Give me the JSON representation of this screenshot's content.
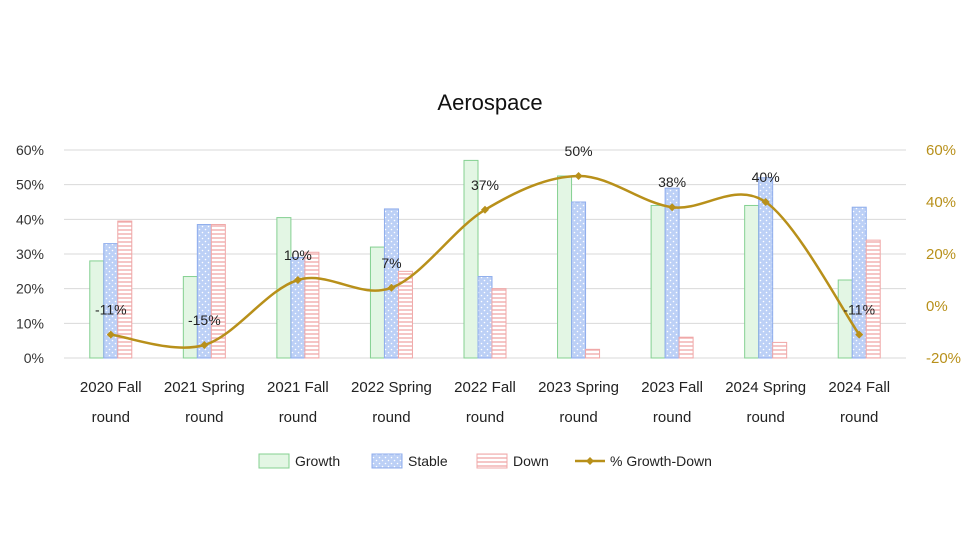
{
  "chart_data": {
    "type": "bar",
    "title": "Aerospace",
    "categories": [
      [
        "2020 Fall",
        "round"
      ],
      [
        "2021 Spring",
        "round"
      ],
      [
        "2021 Fall",
        "round"
      ],
      [
        "2022 Spring",
        "round"
      ],
      [
        "2022 Fall",
        "round"
      ],
      [
        "2023 Spring",
        "round"
      ],
      [
        "2023 Fall",
        "round"
      ],
      [
        "2024 Spring",
        "round"
      ],
      [
        "2024 Fall",
        "round"
      ]
    ],
    "series": [
      {
        "name": "Growth",
        "values": [
          28,
          23.5,
          40.5,
          32,
          57,
          52.5,
          44,
          44,
          22.5
        ]
      },
      {
        "name": "Stable",
        "values": [
          33,
          38.5,
          29,
          43,
          23.5,
          45,
          49,
          52,
          43.5
        ]
      },
      {
        "name": "Down",
        "values": [
          39.5,
          38.5,
          30.5,
          25,
          20,
          2.5,
          6,
          4.5,
          34
        ]
      }
    ],
    "line": {
      "name": "% Growth-Down",
      "values": [
        -11,
        -15,
        10,
        7,
        37,
        50,
        38,
        40,
        -11
      ],
      "labels": [
        "-11%",
        "-15%",
        "10%",
        "7%",
        "37%",
        "50%",
        "38%",
        "40%",
        "-11%"
      ]
    },
    "y_left": {
      "min": 0,
      "max": 60,
      "ticks": [
        "0%",
        "10%",
        "20%",
        "30%",
        "40%",
        "50%",
        "60%"
      ]
    },
    "y_right": {
      "min": -20,
      "max": 60,
      "ticks": [
        "-20%",
        "0%",
        "20%",
        "40%",
        "60%"
      ]
    },
    "colors": {
      "growth_fill": "#e3f6e4",
      "growth_stroke": "#84d091",
      "stable_fill": "#bcd0f6",
      "stable_stroke": "#8fadec",
      "down_fill": "#ffffff",
      "down_stroke": "#f0a8a8",
      "line": "#b8901a",
      "grid": "#d9d9d9"
    },
    "legend": {
      "position": "bottom"
    }
  }
}
